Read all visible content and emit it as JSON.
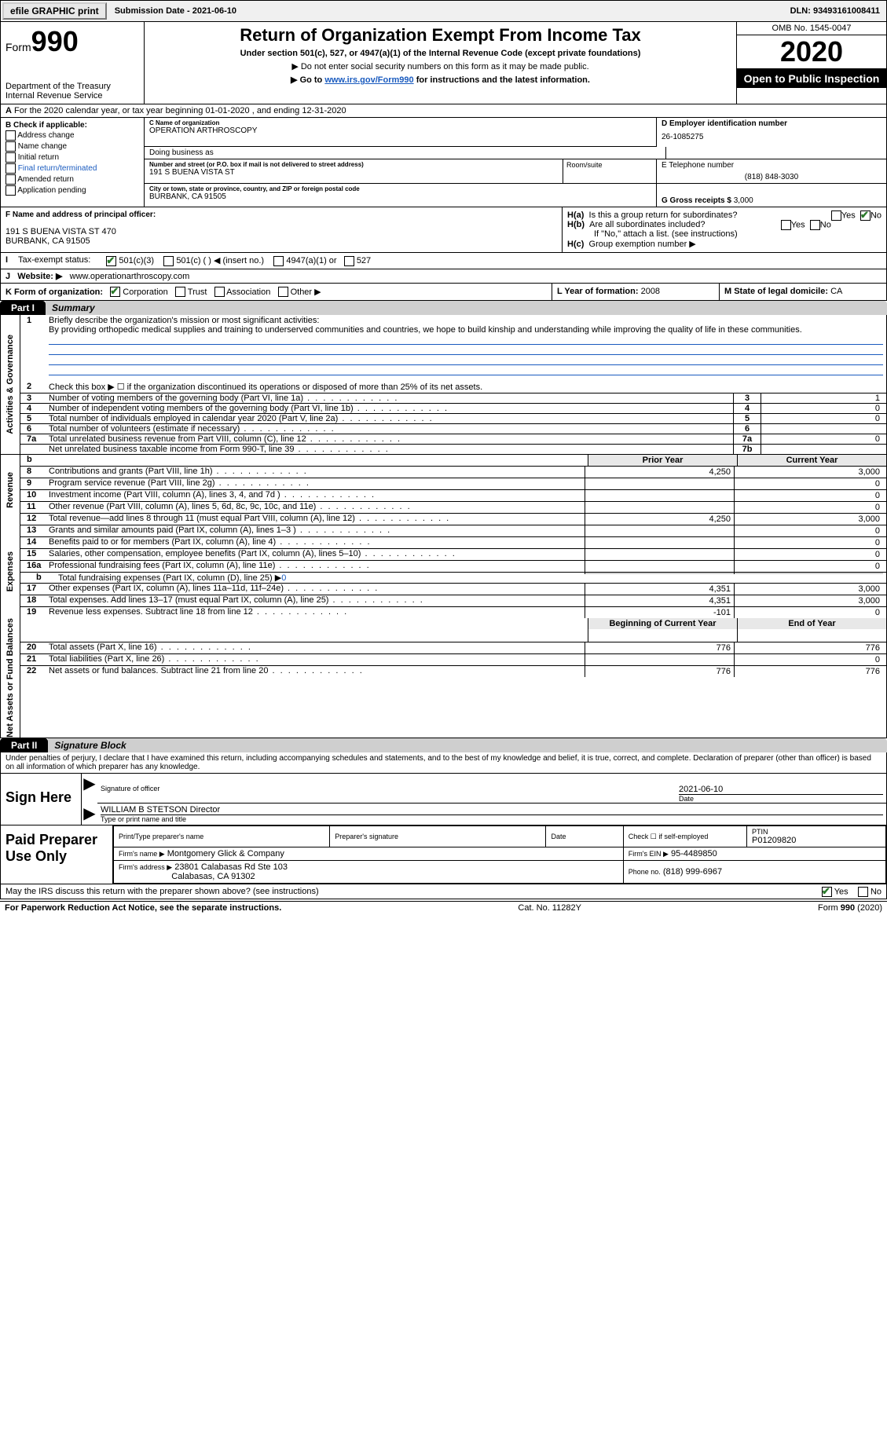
{
  "topbar": {
    "efile": "efile GRAPHIC print",
    "submission": "Submission Date - 2021-06-10",
    "dln": "DLN: 93493161008411"
  },
  "header": {
    "form_word": "Form",
    "form_num": "990",
    "dept1": "Department of the Treasury",
    "dept2": "Internal Revenue Service",
    "title": "Return of Organization Exempt From Income Tax",
    "sub1": "Under section 501(c), 527, or 4947(a)(1) of the Internal Revenue Code (except private foundations)",
    "sub2": "▶ Do not enter social security numbers on this form as it may be made public.",
    "sub3_pre": "▶ Go to ",
    "sub3_link": "www.irs.gov/Form990",
    "sub3_post": " for instructions and the latest information.",
    "omb": "OMB No. 1545-0047",
    "year": "2020",
    "open": "Open to Public Inspection"
  },
  "sectionA": {
    "text": "For the 2020 calendar year, or tax year beginning 01-01-2020   , and ending 12-31-2020"
  },
  "B": {
    "hdr": "B Check if applicable:",
    "items": [
      "Address change",
      "Name change",
      "Initial return",
      "Final return/terminated",
      "Amended return",
      "Application pending"
    ]
  },
  "C": {
    "name_lbl": "C Name of organization",
    "name": "OPERATION ARTHROSCOPY",
    "dba_lbl": "Doing business as",
    "street_lbl": "Number and street (or P.O. box if mail is not delivered to street address)",
    "street": "191 S BUENA VISTA ST",
    "room_lbl": "Room/suite",
    "city_lbl": "City or town, state or province, country, and ZIP or foreign postal code",
    "city": "BURBANK, CA  91505"
  },
  "D": {
    "lbl": "D Employer identification number",
    "val": "26-1085275"
  },
  "E": {
    "lbl": "E Telephone number",
    "val": "(818) 848-3030"
  },
  "G": {
    "lbl": "G Gross receipts $",
    "val": "3,000"
  },
  "F": {
    "lbl": "F  Name and address of principal officer:",
    "addr1": "191 S BUENA VISTA ST 470",
    "addr2": "BURBANK, CA  91505"
  },
  "H": {
    "a_lbl": "H(a)",
    "a_txt": "Is this a group return for subordinates?",
    "a_yes": "Yes",
    "a_no": "No",
    "b_lbl": "H(b)",
    "b_txt": "Are all subordinates included?",
    "b_note": "If \"No,\" attach a list. (see instructions)",
    "c_lbl": "H(c)",
    "c_txt": "Group exemption number ▶"
  },
  "I": {
    "lbl": "Tax-exempt status:",
    "opt1": "501(c)(3)",
    "opt2": "501(c) (   ) ◀ (insert no.)",
    "opt3": "4947(a)(1) or",
    "opt4": "527"
  },
  "J": {
    "lbl": "J",
    "txt": "Website: ▶",
    "val": "www.operationarthroscopy.com"
  },
  "K": {
    "lbl": "K Form of organization:",
    "o1": "Corporation",
    "o2": "Trust",
    "o3": "Association",
    "o4": "Other ▶"
  },
  "L": {
    "lbl": "L Year of formation:",
    "val": "2008"
  },
  "M": {
    "lbl": "M State of legal domicile:",
    "val": "CA"
  },
  "part1": {
    "tab": "Part I",
    "title": "Summary"
  },
  "part1_lines": {
    "l1_lbl": "1",
    "l1_txt": "Briefly describe the organization's mission or most significant activities:",
    "l1_body": "By providing orthopedic medical supplies and training to underserved communities and countries, we hope to build kinship and understanding while improving the quality of life in these communities.",
    "l2_lbl": "2",
    "l2_txt": "Check this box ▶ ☐  if the organization discontinued its operations or disposed of more than 25% of its net assets.",
    "rows_gov": [
      {
        "n": "3",
        "t": "Number of voting members of the governing body (Part VI, line 1a)",
        "box": "3",
        "v": "1"
      },
      {
        "n": "4",
        "t": "Number of independent voting members of the governing body (Part VI, line 1b)",
        "box": "4",
        "v": "0"
      },
      {
        "n": "5",
        "t": "Total number of individuals employed in calendar year 2020 (Part V, line 2a)",
        "box": "5",
        "v": "0"
      },
      {
        "n": "6",
        "t": "Total number of volunteers (estimate if necessary)",
        "box": "6",
        "v": ""
      },
      {
        "n": "7a",
        "t": "Total unrelated business revenue from Part VIII, column (C), line 12",
        "box": "7a",
        "v": "0"
      },
      {
        "n": "",
        "t": "Net unrelated business taxable income from Form 990-T, line 39",
        "box": "7b",
        "v": ""
      }
    ],
    "hdr_b": "b",
    "prior_hdr": "Prior Year",
    "curr_hdr": "Current Year",
    "rev_rows": [
      {
        "n": "8",
        "t": "Contributions and grants (Part VIII, line 1h)",
        "p": "4,250",
        "c": "3,000"
      },
      {
        "n": "9",
        "t": "Program service revenue (Part VIII, line 2g)",
        "p": "",
        "c": "0"
      },
      {
        "n": "10",
        "t": "Investment income (Part VIII, column (A), lines 3, 4, and 7d )",
        "p": "",
        "c": "0"
      },
      {
        "n": "11",
        "t": "Other revenue (Part VIII, column (A), lines 5, 6d, 8c, 9c, 10c, and 11e)",
        "p": "",
        "c": "0"
      },
      {
        "n": "12",
        "t": "Total revenue—add lines 8 through 11 (must equal Part VIII, column (A), line 12)",
        "p": "4,250",
        "c": "3,000"
      }
    ],
    "exp_rows": [
      {
        "n": "13",
        "t": "Grants and similar amounts paid (Part IX, column (A), lines 1–3 )",
        "p": "",
        "c": "0"
      },
      {
        "n": "14",
        "t": "Benefits paid to or for members (Part IX, column (A), line 4)",
        "p": "",
        "c": "0"
      },
      {
        "n": "15",
        "t": "Salaries, other compensation, employee benefits (Part IX, column (A), lines 5–10)",
        "p": "",
        "c": "0"
      },
      {
        "n": "16a",
        "t": "Professional fundraising fees (Part IX, column (A), line 11e)",
        "p": "",
        "c": "0"
      }
    ],
    "l16b_n": "b",
    "l16b_t": "Total fundraising expenses (Part IX, column (D), line 25) ▶",
    "l16b_v": "0",
    "exp_rows2": [
      {
        "n": "17",
        "t": "Other expenses (Part IX, column (A), lines 11a–11d, 11f–24e)",
        "p": "4,351",
        "c": "3,000"
      },
      {
        "n": "18",
        "t": "Total expenses. Add lines 13–17 (must equal Part IX, column (A), line 25)",
        "p": "4,351",
        "c": "3,000"
      },
      {
        "n": "19",
        "t": "Revenue less expenses. Subtract line 18 from line 12",
        "p": "-101",
        "c": "0"
      }
    ],
    "net_hdr_b": "Beginning of Current Year",
    "net_hdr_e": "End of Year",
    "net_rows": [
      {
        "n": "20",
        "t": "Total assets (Part X, line 16)",
        "p": "776",
        "c": "776"
      },
      {
        "n": "21",
        "t": "Total liabilities (Part X, line 26)",
        "p": "",
        "c": "0"
      },
      {
        "n": "22",
        "t": "Net assets or fund balances. Subtract line 21 from line 20",
        "p": "776",
        "c": "776"
      }
    ]
  },
  "sidelabels": {
    "gov": "Activities & Governance",
    "rev": "Revenue",
    "exp": "Expenses",
    "net": "Net Assets or Fund Balances"
  },
  "part2": {
    "tab": "Part II",
    "title": "Signature Block"
  },
  "penalties": "Under penalties of perjury, I declare that I have examined this return, including accompanying schedules and statements, and to the best of my knowledge and belief, it is true, correct, and complete. Declaration of preparer (other than officer) is based on all information of which preparer has any knowledge.",
  "sign": {
    "left": "Sign Here",
    "sig_lbl": "Signature of officer",
    "date_lbl": "Date",
    "date_val": "2021-06-10",
    "name": "WILLIAM B STETSON  Director",
    "name_lbl": "Type or print name and title"
  },
  "paid": {
    "left": "Paid Preparer Use Only",
    "h1": "Print/Type preparer's name",
    "h2": "Preparer's signature",
    "h3": "Date",
    "h4_pre": "Check ☐ if self-employed",
    "h5": "PTIN",
    "ptin": "P01209820",
    "firm_lbl": "Firm's name    ▶",
    "firm": "Montgomery Glick & Company",
    "ein_lbl": "Firm's EIN ▶",
    "ein": "95-4489850",
    "addr_lbl": "Firm's address ▶",
    "addr1": "23801 Calabasas Rd Ste 103",
    "addr2": "Calabasas, CA  91302",
    "phone_lbl": "Phone no.",
    "phone": "(818) 999-6967"
  },
  "discuss": {
    "txt": "May the IRS discuss this return with the preparer shown above? (see instructions)",
    "yes": "Yes",
    "no": "No"
  },
  "footer": {
    "left": "For Paperwork Reduction Act Notice, see the separate instructions.",
    "mid": "Cat. No. 11282Y",
    "right_pre": "Form ",
    "right_bold": "990",
    "right_post": " (2020)"
  },
  "colors": {
    "link": "#1a5bbf",
    "black": "#000000",
    "grey": "#cfcfcf",
    "check": "#2a7a2a"
  }
}
